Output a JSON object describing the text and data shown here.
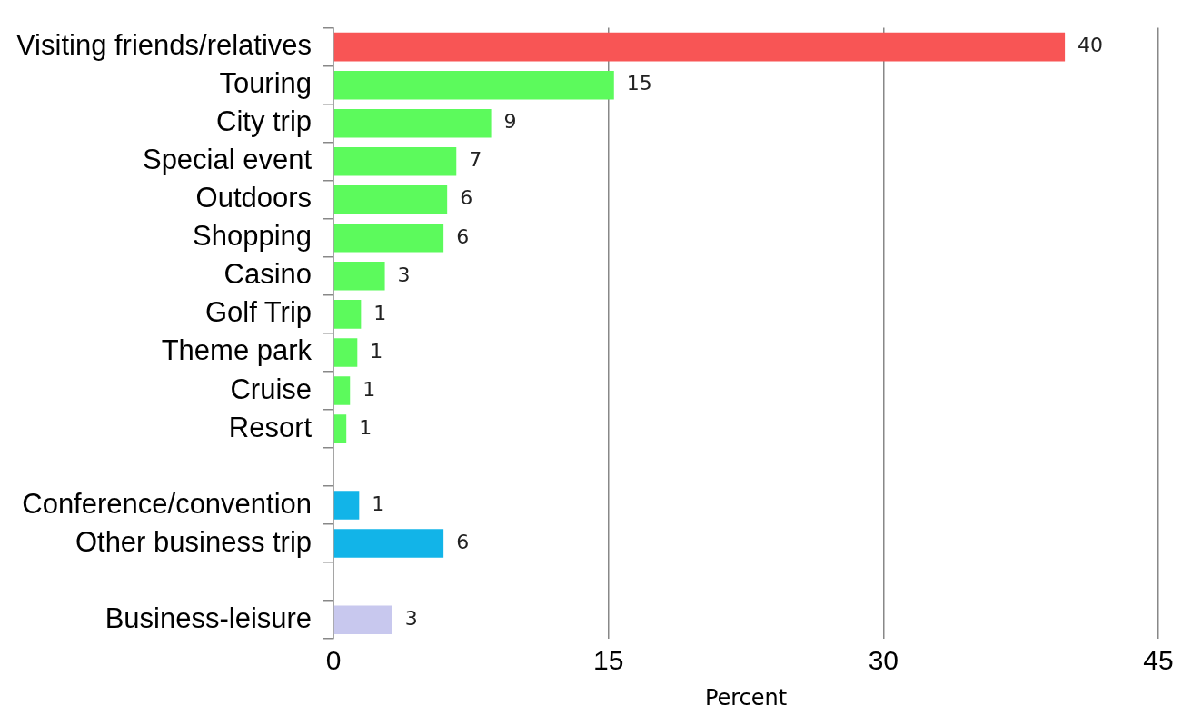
{
  "chart_data": {
    "type": "bar",
    "orientation": "horizontal",
    "xlabel": "Percent",
    "categories": [
      "Visiting friends/relatives",
      "Touring",
      "City trip",
      "Special event",
      "Outdoors",
      "Shopping",
      "Casino",
      "Golf Trip",
      "Theme park",
      "Cruise",
      "Resort",
      null,
      "Conference/convention",
      "Other business trip",
      null,
      "Business-leisure"
    ],
    "values": [
      39.9,
      15.3,
      8.6,
      6.7,
      6.2,
      6.0,
      2.8,
      1.5,
      1.3,
      0.9,
      0.7,
      null,
      1.4,
      6.0,
      null,
      3.2
    ],
    "value_labels": [
      "40",
      "15",
      "9",
      "7",
      "6",
      "6",
      "3",
      "1",
      "1",
      "1",
      "1",
      null,
      "1",
      "6",
      null,
      "3"
    ],
    "colors": [
      "#f85555",
      "#5cfa5c",
      "#5cfa5c",
      "#5cfa5c",
      "#5cfa5c",
      "#5cfa5c",
      "#5cfa5c",
      "#5cfa5c",
      "#5cfa5c",
      "#5cfa5c",
      "#5cfa5c",
      "#5cfa5c",
      "#12b4e8",
      "#12b4e8",
      "#12b4e8",
      "#c8c8ee"
    ],
    "xlim": [
      0,
      45
    ],
    "xticks": [
      0,
      15,
      30,
      45
    ],
    "grid": "x",
    "legend": false
  }
}
